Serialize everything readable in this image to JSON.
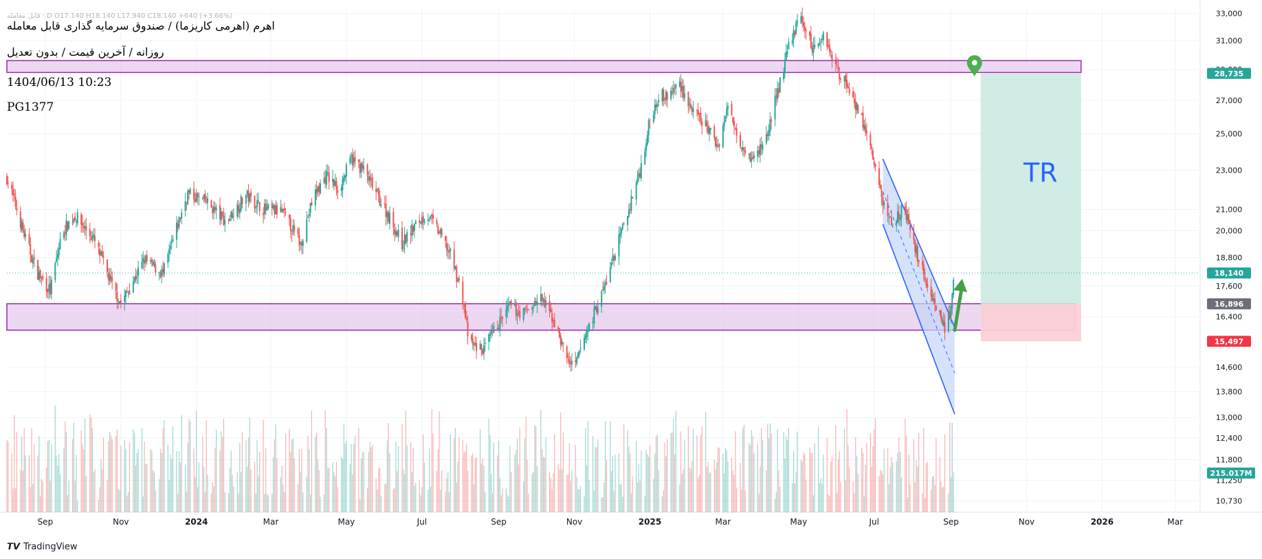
{
  "header": {
    "ohlc_line": "قابل معامله · D  O17.140  H18.140  L17.940  C18.140  +640 (+3.66%)",
    "title": "اهرم (اهرمی کاریزما) / صندوق سرمایه گذاری قابل معامله",
    "subtitle": "روزانه / آخرین قیمت / بدون تعدیل",
    "datetime": "1404/06/13 10:23",
    "code": "PG1377"
  },
  "branding": {
    "tradingview": "TradingView"
  },
  "colors": {
    "up": "#26a69a",
    "down": "#ef5350",
    "zone_fill": "#e1bee7",
    "zone_stroke": "#9c27b0",
    "channel_fill": "#c5d5f7",
    "channel_stroke": "#2962ff",
    "target_fill": "#cdebe4",
    "stop_fill": "#fad0d5",
    "arrow": "#43a047",
    "marker": "#4caf50",
    "last_price_bg": "#26a69a",
    "entry_bg": "#6b6e78",
    "stop_bg": "#f23645"
  },
  "annotations": {
    "target_label": "TR"
  },
  "chart_data": {
    "type": "candlestick",
    "y_scale": "log",
    "ylim": [
      10450,
      33500
    ],
    "xlim": [
      "2023-08-01",
      "2026-03-20"
    ],
    "grid": true,
    "y_ticks": [
      33000,
      31000,
      29000,
      27000,
      25000,
      23000,
      21000,
      20000,
      18800,
      17600,
      16400,
      14600,
      13800,
      13000,
      12400,
      11800,
      11250,
      10730
    ],
    "y_tick_labels": [
      "33,000",
      "31,000",
      "29,000",
      "27,000",
      "25,000",
      "23,000",
      "21,000",
      "20,000",
      "18,800",
      "17,600",
      "16,400",
      "14,600",
      "13,800",
      "13,000",
      "12,400",
      "11,800",
      "11,250",
      "10,730"
    ],
    "x_ticks": [
      {
        "date": "2023-09-01",
        "label": "Sep"
      },
      {
        "date": "2023-11-01",
        "label": "Nov"
      },
      {
        "date": "2024-01-01",
        "label": "2024"
      },
      {
        "date": "2024-03-01",
        "label": "Mar"
      },
      {
        "date": "2024-05-01",
        "label": "May"
      },
      {
        "date": "2024-07-01",
        "label": "Jul"
      },
      {
        "date": "2024-09-01",
        "label": "Sep"
      },
      {
        "date": "2024-11-01",
        "label": "Nov"
      },
      {
        "date": "2025-01-01",
        "label": "2025"
      },
      {
        "date": "2025-03-01",
        "label": "Mar"
      },
      {
        "date": "2025-05-01",
        "label": "May"
      },
      {
        "date": "2025-07-01",
        "label": "Jul"
      },
      {
        "date": "2025-09-01",
        "label": "Sep"
      },
      {
        "date": "2025-11-01",
        "label": "Nov"
      },
      {
        "date": "2026-01-01",
        "label": "2026"
      },
      {
        "date": "2026-03-01",
        "label": "Mar"
      }
    ],
    "price_path": [
      {
        "date": "2023-08-01",
        "price": 22600
      },
      {
        "date": "2023-08-15",
        "price": 19800
      },
      {
        "date": "2023-08-25",
        "price": 18200
      },
      {
        "date": "2023-09-05",
        "price": 17400
      },
      {
        "date": "2023-09-15",
        "price": 20000
      },
      {
        "date": "2023-09-25",
        "price": 20700
      },
      {
        "date": "2023-10-10",
        "price": 19600
      },
      {
        "date": "2023-10-25",
        "price": 17600
      },
      {
        "date": "2023-11-01",
        "price": 16900
      },
      {
        "date": "2023-11-10",
        "price": 17700
      },
      {
        "date": "2023-11-20",
        "price": 18700
      },
      {
        "date": "2023-12-05",
        "price": 18100
      },
      {
        "date": "2023-12-15",
        "price": 19900
      },
      {
        "date": "2023-12-25",
        "price": 21800
      },
      {
        "date": "2024-01-10",
        "price": 21300
      },
      {
        "date": "2024-01-25",
        "price": 20400
      },
      {
        "date": "2024-02-10",
        "price": 21700
      },
      {
        "date": "2024-02-25",
        "price": 21000
      },
      {
        "date": "2024-03-10",
        "price": 20900
      },
      {
        "date": "2024-03-25",
        "price": 19400
      },
      {
        "date": "2024-04-05",
        "price": 21700
      },
      {
        "date": "2024-04-15",
        "price": 22700
      },
      {
        "date": "2024-04-25",
        "price": 22000
      },
      {
        "date": "2024-05-05",
        "price": 23600
      },
      {
        "date": "2024-05-15",
        "price": 23000
      },
      {
        "date": "2024-05-25",
        "price": 21800
      },
      {
        "date": "2024-06-05",
        "price": 20600
      },
      {
        "date": "2024-06-15",
        "price": 19400
      },
      {
        "date": "2024-06-25",
        "price": 20200
      },
      {
        "date": "2024-07-05",
        "price": 20800
      },
      {
        "date": "2024-07-15",
        "price": 19900
      },
      {
        "date": "2024-07-25",
        "price": 18800
      },
      {
        "date": "2024-08-03",
        "price": 17100
      },
      {
        "date": "2024-08-08",
        "price": 15400
      },
      {
        "date": "2024-08-20",
        "price": 15200
      },
      {
        "date": "2024-08-30",
        "price": 16000
      },
      {
        "date": "2024-09-10",
        "price": 16800
      },
      {
        "date": "2024-09-20",
        "price": 16500
      },
      {
        "date": "2024-10-05",
        "price": 17100
      },
      {
        "date": "2024-10-15",
        "price": 16300
      },
      {
        "date": "2024-10-25",
        "price": 15000
      },
      {
        "date": "2024-11-01",
        "price": 14500
      },
      {
        "date": "2024-11-08",
        "price": 15500
      },
      {
        "date": "2024-11-15",
        "price": 16300
      },
      {
        "date": "2024-11-25",
        "price": 17500
      },
      {
        "date": "2024-12-05",
        "price": 19200
      },
      {
        "date": "2024-12-15",
        "price": 21000
      },
      {
        "date": "2024-12-25",
        "price": 23200
      },
      {
        "date": "2025-01-01",
        "price": 25800
      },
      {
        "date": "2025-01-08",
        "price": 27400
      },
      {
        "date": "2025-01-15",
        "price": 27200
      },
      {
        "date": "2025-01-25",
        "price": 28100
      },
      {
        "date": "2025-02-05",
        "price": 26200
      },
      {
        "date": "2025-02-15",
        "price": 25500
      },
      {
        "date": "2025-02-25",
        "price": 24300
      },
      {
        "date": "2025-03-05",
        "price": 26600
      },
      {
        "date": "2025-03-15",
        "price": 24600
      },
      {
        "date": "2025-03-25",
        "price": 23500
      },
      {
        "date": "2025-04-05",
        "price": 24800
      },
      {
        "date": "2025-04-15",
        "price": 27800
      },
      {
        "date": "2025-04-25",
        "price": 31200
      },
      {
        "date": "2025-05-03",
        "price": 32700
      },
      {
        "date": "2025-05-12",
        "price": 30400
      },
      {
        "date": "2025-05-22",
        "price": 31400
      },
      {
        "date": "2025-06-01",
        "price": 29000
      },
      {
        "date": "2025-06-10",
        "price": 27900
      },
      {
        "date": "2025-06-20",
        "price": 26100
      },
      {
        "date": "2025-06-28",
        "price": 24200
      },
      {
        "date": "2025-07-08",
        "price": 21300
      },
      {
        "date": "2025-07-15",
        "price": 20400
      },
      {
        "date": "2025-07-25",
        "price": 21100
      },
      {
        "date": "2025-08-03",
        "price": 19200
      },
      {
        "date": "2025-08-12",
        "price": 17800
      },
      {
        "date": "2025-08-20",
        "price": 16800
      },
      {
        "date": "2025-08-27",
        "price": 16000
      },
      {
        "date": "2025-09-01",
        "price": 16600
      },
      {
        "date": "2025-09-04",
        "price": 18140
      }
    ],
    "volume_range": [
      0,
      215000000
    ],
    "last_price": {
      "value": 18140,
      "label": "18,140"
    },
    "volume_label": "215.017M",
    "zones": [
      {
        "name": "resistance-zone",
        "from": "2023-08-01",
        "to": "2025-12-15",
        "low": 28800,
        "high": 29600
      },
      {
        "name": "support-zone",
        "from": "2023-08-01",
        "to": "2025-12-10",
        "low": 15900,
        "high": 16900
      }
    ],
    "channel": {
      "upper_start": {
        "date": "2025-07-08",
        "price": 23600
      },
      "upper_end": {
        "date": "2025-09-04",
        "price": 16000
      },
      "lower_start": {
        "date": "2025-07-08",
        "price": 20300
      },
      "lower_end": {
        "date": "2025-09-04",
        "price": 13100
      },
      "mid_end": {
        "date": "2025-09-04",
        "price": 14400
      }
    },
    "position": {
      "from": "2025-09-25",
      "to": "2025-12-15",
      "entry": {
        "value": 16896,
        "label": "16,896"
      },
      "target": {
        "value": 28735,
        "label": "28,735"
      },
      "stop": {
        "value": 15497,
        "label": "15,497"
      }
    },
    "arrow": {
      "from": {
        "date": "2025-09-04",
        "price": 15900
      },
      "to": {
        "date": "2025-09-10",
        "price": 17900
      }
    },
    "target_marker": {
      "date": "2025-09-20",
      "price": 28900
    }
  }
}
